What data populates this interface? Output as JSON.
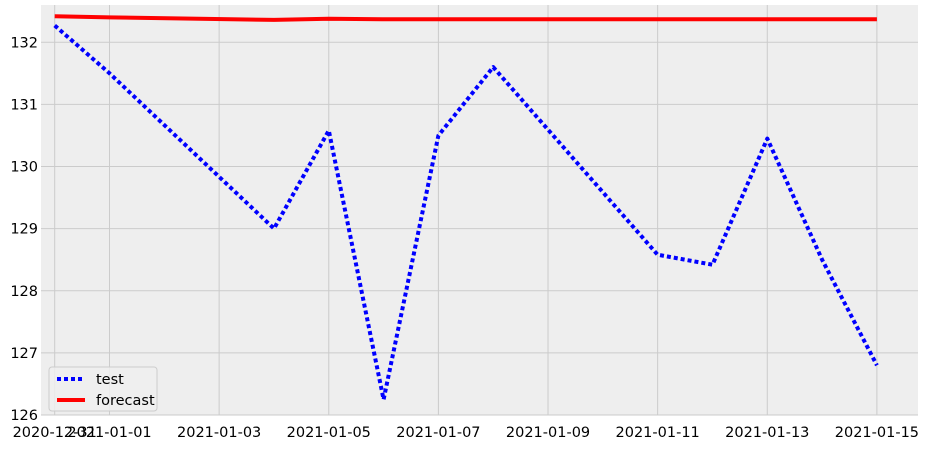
{
  "chart_data": {
    "type": "line",
    "title": "",
    "xlabel": "",
    "ylabel": "",
    "x": [
      "2020-12-31",
      "2021-01-01",
      "2021-01-04",
      "2021-01-05",
      "2021-01-06",
      "2021-01-07",
      "2021-01-08",
      "2021-01-11",
      "2021-01-12",
      "2021-01-13",
      "2021-01-14",
      "2021-01-15"
    ],
    "series": [
      {
        "name": "test",
        "color": "#0000ff",
        "style": "dotted",
        "values": [
          132.27,
          131.5,
          129.0,
          130.58,
          126.25,
          130.5,
          131.6,
          128.58,
          128.42,
          130.45,
          128.5,
          126.8
        ]
      },
      {
        "name": "forecast",
        "color": "#ff0000",
        "style": "solid",
        "values": [
          132.42,
          132.4,
          132.36,
          132.38,
          132.37,
          132.37,
          132.37,
          132.37,
          132.37,
          132.37,
          132.37,
          132.37
        ]
      }
    ],
    "x_ticks": [
      "2020-12-31",
      "2021-01-01",
      "2021-01-03",
      "2021-01-05",
      "2021-01-07",
      "2021-01-09",
      "2021-01-11",
      "2021-01-13",
      "2021-01-15"
    ],
    "y_ticks": [
      126,
      127,
      128,
      129,
      130,
      131,
      132
    ],
    "xlim": [
      "2020-12-30 18:00",
      "2021-01-15 18:00"
    ],
    "ylim": [
      126.0,
      132.6
    ],
    "grid": true,
    "legend_position": "lower-left",
    "background": "#eeeeee",
    "grid_color": "#cbcbcb"
  }
}
